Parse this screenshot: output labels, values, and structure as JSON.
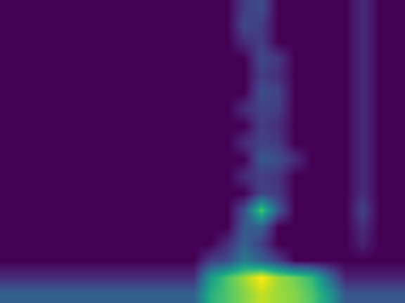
{
  "chart_data": {
    "type": "heatmap",
    "tick_labels": false,
    "cells": [
      [
        0.45,
        0.45,
        0.45,
        0.45,
        0.45,
        0.45,
        0.45,
        0.45,
        0.45,
        0.45,
        0.45,
        0.45,
        0.45,
        0.45,
        0.55,
        0.58,
        0.45,
        0.45,
        0.45,
        0.45,
        0.45,
        0.52,
        0.45,
        0.45
      ],
      [
        0.45,
        0.45,
        0.45,
        0.45,
        0.45,
        0.45,
        0.45,
        0.45,
        0.45,
        0.45,
        0.45,
        0.45,
        0.45,
        0.45,
        0.57,
        0.55,
        0.45,
        0.45,
        0.45,
        0.45,
        0.45,
        0.52,
        0.45,
        0.45
      ],
      [
        0.45,
        0.45,
        0.45,
        0.45,
        0.45,
        0.45,
        0.45,
        0.45,
        0.45,
        0.45,
        0.45,
        0.45,
        0.45,
        0.45,
        0.52,
        0.55,
        0.45,
        0.45,
        0.45,
        0.45,
        0.45,
        0.52,
        0.45,
        0.45
      ],
      [
        0.45,
        0.45,
        0.45,
        0.45,
        0.45,
        0.45,
        0.45,
        0.45,
        0.45,
        0.45,
        0.45,
        0.45,
        0.45,
        0.45,
        0.45,
        0.57,
        0.54,
        0.45,
        0.45,
        0.45,
        0.45,
        0.52,
        0.45,
        0.45
      ],
      [
        0.45,
        0.45,
        0.45,
        0.45,
        0.45,
        0.45,
        0.45,
        0.45,
        0.45,
        0.45,
        0.45,
        0.45,
        0.45,
        0.45,
        0.45,
        0.55,
        0.52,
        0.45,
        0.45,
        0.45,
        0.45,
        0.52,
        0.45,
        0.45
      ],
      [
        0.45,
        0.45,
        0.45,
        0.45,
        0.45,
        0.45,
        0.45,
        0.45,
        0.45,
        0.45,
        0.45,
        0.45,
        0.45,
        0.45,
        0.45,
        0.58,
        0.56,
        0.45,
        0.45,
        0.45,
        0.45,
        0.52,
        0.45,
        0.45
      ],
      [
        0.45,
        0.45,
        0.45,
        0.45,
        0.45,
        0.45,
        0.45,
        0.45,
        0.45,
        0.45,
        0.45,
        0.45,
        0.45,
        0.45,
        0.52,
        0.56,
        0.55,
        0.45,
        0.45,
        0.45,
        0.45,
        0.52,
        0.45,
        0.45
      ],
      [
        0.45,
        0.45,
        0.45,
        0.45,
        0.45,
        0.45,
        0.45,
        0.45,
        0.45,
        0.45,
        0.45,
        0.45,
        0.45,
        0.45,
        0.45,
        0.55,
        0.52,
        0.45,
        0.45,
        0.45,
        0.45,
        0.52,
        0.45,
        0.45
      ],
      [
        0.45,
        0.45,
        0.45,
        0.45,
        0.45,
        0.45,
        0.45,
        0.45,
        0.45,
        0.45,
        0.45,
        0.45,
        0.45,
        0.45,
        0.52,
        0.56,
        0.54,
        0.45,
        0.45,
        0.45,
        0.45,
        0.52,
        0.45,
        0.45
      ],
      [
        0.45,
        0.45,
        0.45,
        0.45,
        0.45,
        0.45,
        0.45,
        0.45,
        0.45,
        0.45,
        0.45,
        0.45,
        0.45,
        0.45,
        0.45,
        0.6,
        0.58,
        0.52,
        0.45,
        0.45,
        0.45,
        0.52,
        0.45,
        0.45
      ],
      [
        0.45,
        0.45,
        0.45,
        0.45,
        0.45,
        0.45,
        0.45,
        0.45,
        0.45,
        0.45,
        0.45,
        0.45,
        0.45,
        0.45,
        0.52,
        0.55,
        0.53,
        0.45,
        0.45,
        0.45,
        0.45,
        0.52,
        0.45,
        0.45
      ],
      [
        0.45,
        0.45,
        0.45,
        0.45,
        0.45,
        0.45,
        0.45,
        0.45,
        0.45,
        0.45,
        0.45,
        0.45,
        0.45,
        0.45,
        0.45,
        0.56,
        0.54,
        0.45,
        0.45,
        0.45,
        0.45,
        0.52,
        0.45,
        0.45
      ],
      [
        0.45,
        0.45,
        0.45,
        0.45,
        0.45,
        0.45,
        0.45,
        0.45,
        0.45,
        0.45,
        0.45,
        0.45,
        0.45,
        0.45,
        0.58,
        0.85,
        0.6,
        0.45,
        0.45,
        0.45,
        0.45,
        0.56,
        0.45,
        0.45
      ],
      [
        0.45,
        0.45,
        0.45,
        0.45,
        0.45,
        0.45,
        0.45,
        0.45,
        0.45,
        0.45,
        0.45,
        0.45,
        0.45,
        0.45,
        0.6,
        0.62,
        0.45,
        0.45,
        0.45,
        0.45,
        0.45,
        0.52,
        0.45,
        0.45
      ],
      [
        0.45,
        0.45,
        0.45,
        0.45,
        0.45,
        0.45,
        0.45,
        0.45,
        0.45,
        0.45,
        0.45,
        0.45,
        0.45,
        0.52,
        0.62,
        0.55,
        0.45,
        0.45,
        0.45,
        0.45,
        0.45,
        0.5,
        0.45,
        0.45
      ],
      [
        0.45,
        0.45,
        0.45,
        0.45,
        0.45,
        0.45,
        0.45,
        0.45,
        0.45,
        0.45,
        0.45,
        0.45,
        0.55,
        0.58,
        0.68,
        0.62,
        0.55,
        0.45,
        0.45,
        0.45,
        0.45,
        0.45,
        0.45,
        0.45
      ],
      [
        0.52,
        0.52,
        0.52,
        0.52,
        0.52,
        0.52,
        0.52,
        0.52,
        0.52,
        0.52,
        0.52,
        0.52,
        0.75,
        0.85,
        0.92,
        1.0,
        0.92,
        0.88,
        0.82,
        0.65,
        0.5,
        0.5,
        0.5,
        0.5
      ],
      [
        0.62,
        0.62,
        0.62,
        0.62,
        0.62,
        0.62,
        0.62,
        0.62,
        0.62,
        0.62,
        0.62,
        0.62,
        0.8,
        0.85,
        0.9,
        0.95,
        0.92,
        0.9,
        0.85,
        0.75,
        0.6,
        0.6,
        0.6,
        0.6
      ]
    ]
  }
}
